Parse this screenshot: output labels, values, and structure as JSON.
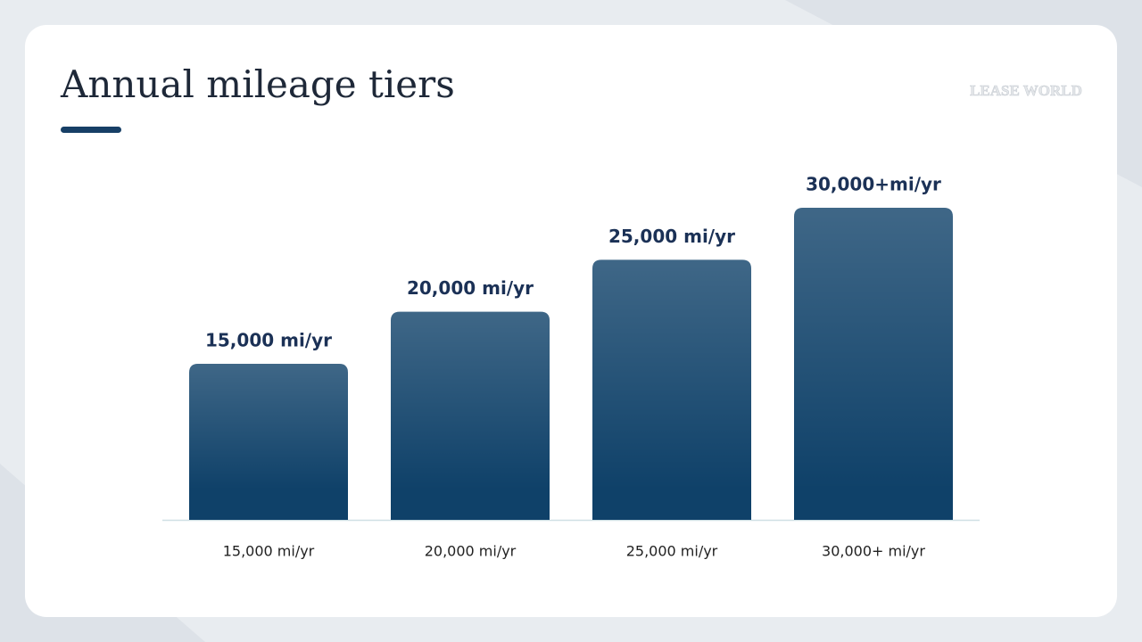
{
  "logo": "LEASE WORLD",
  "chart_data": {
    "type": "bar",
    "title": "Annual mileage tiers",
    "categories": [
      "15,000 mi/yr",
      "20,000 mi/yr",
      "25,000 mi/yr",
      "30,000+ mi/yr"
    ],
    "values": [
      15000,
      20000,
      25000,
      30000
    ],
    "value_labels": [
      "15,000 mi/yr",
      "20,000 mi/yr",
      "25,000 mi/yr",
      "30,000+mi/yr"
    ],
    "color": "#0f4169"
  }
}
